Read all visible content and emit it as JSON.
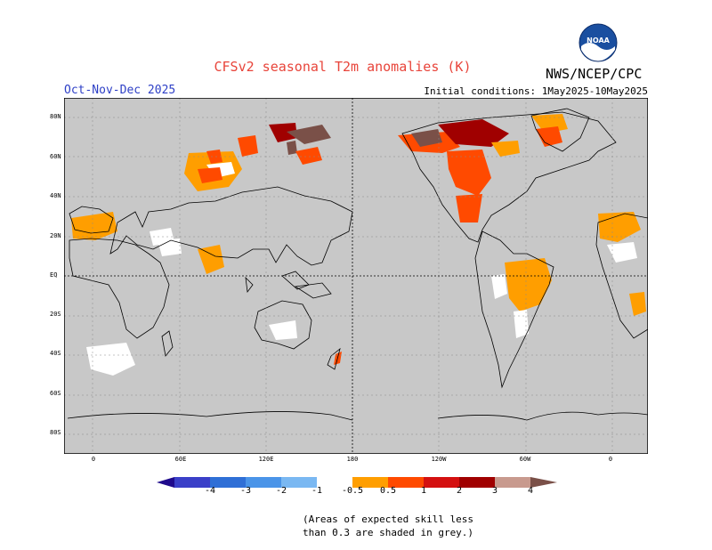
{
  "header": {
    "title": "CFSv2 seasonal T2m anomalies (K)",
    "organization": "NWS/NCEP/CPC",
    "period": "Oct-Nov-Dec 2025",
    "initial_conditions": "Initial conditions: 1May2025-10May2025"
  },
  "logo": {
    "text": "NOAA"
  },
  "map": {
    "lat_labels": [
      "80N",
      "60N",
      "40N",
      "20N",
      "EQ",
      "20S",
      "40S",
      "60S",
      "80S"
    ],
    "lon_labels": [
      "0",
      "60E",
      "120E",
      "180",
      "120W",
      "60W",
      "0"
    ]
  },
  "colorbar": {
    "labels": [
      "-4",
      "-3",
      "-2",
      "-1",
      "-0.5",
      "0.5",
      "1",
      "2",
      "3",
      "4"
    ],
    "colors": [
      "#1f0a8c",
      "#3a3fc8",
      "#2f6fd6",
      "#4a94e8",
      "#7ab8f2",
      "#ffffff",
      "#ff9e00",
      "#ff4a00",
      "#d41010",
      "#a00000",
      "#c89a8e",
      "#7a5048"
    ]
  },
  "note": {
    "line1": "(Areas of expected skill less",
    "line2": " than 0.3 are shaded in grey.)"
  },
  "palette": {
    "no_skill_grey": "#c8c8c8",
    "weak": "#ffffff",
    "orange": "#ff9e00",
    "red_orange": "#ff4a00",
    "dark_red": "#a00000",
    "brown": "#7a5048"
  }
}
